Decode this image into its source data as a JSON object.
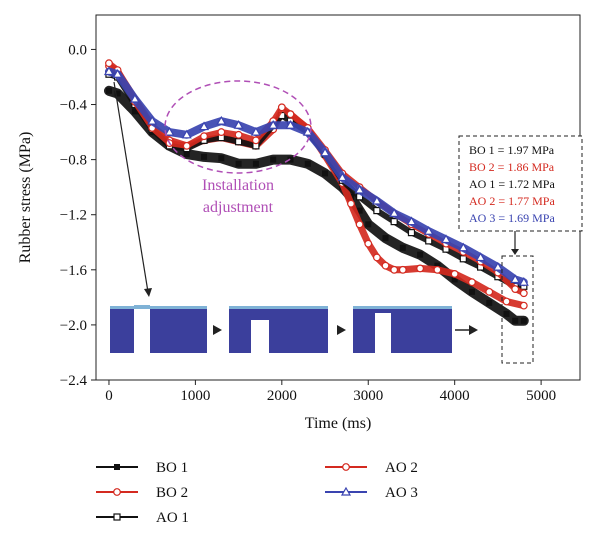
{
  "chart_data": {
    "type": "line",
    "xlabel": "Time (ms)",
    "ylabel": "Rubber stress (MPa)",
    "xlim": [
      -150,
      5450
    ],
    "ylim": [
      -2.4,
      0.25
    ],
    "x_ticks": [
      0,
      1000,
      2000,
      3000,
      4000,
      5000
    ],
    "y_ticks": [
      0.0,
      -0.4,
      -0.8,
      -1.2,
      -1.6,
      -2.0,
      -2.4
    ],
    "x_tick_labels": [
      "0",
      "1000",
      "2000",
      "3000",
      "4000",
      "5000"
    ],
    "y_tick_labels": [
      "0.0",
      "−0.4",
      "−0.8",
      "−1.2",
      "−1.6",
      "−2.0",
      "−2.4"
    ],
    "grid": false,
    "legend_position": "below plot",
    "annotations": {
      "installation": [
        "Installation",
        "adjustment"
      ],
      "installation_color": "#b04fb6",
      "final_values": [
        {
          "text": "BO 1 = 1.97 MPa",
          "color": "#111111"
        },
        {
          "text": "BO 2 = 1.86 MPa",
          "color": "#d42a20"
        },
        {
          "text": "AO 1 = 1.72 MPa",
          "color": "#111111"
        },
        {
          "text": "AO 2 = 1.77 MPa",
          "color": "#d42a20"
        },
        {
          "text": "AO 3 = 1.69 MPa",
          "color": "#3a44b0"
        }
      ]
    },
    "series": [
      {
        "name": "BO 1",
        "color": "#111111",
        "marker": "filled-square",
        "x": [
          0,
          100,
          300,
          500,
          700,
          900,
          1100,
          1300,
          1500,
          1700,
          1900,
          2100,
          2300,
          2500,
          2700,
          2800,
          2900,
          3000,
          3200,
          3400,
          3600,
          3800,
          4000,
          4200,
          4400,
          4600,
          4700,
          4800
        ],
        "y": [
          -0.3,
          -0.32,
          -0.45,
          -0.6,
          -0.7,
          -0.76,
          -0.78,
          -0.79,
          -0.83,
          -0.83,
          -0.8,
          -0.8,
          -0.83,
          -0.9,
          -1.0,
          -1.07,
          -1.17,
          -1.27,
          -1.37,
          -1.44,
          -1.49,
          -1.57,
          -1.67,
          -1.76,
          -1.84,
          -1.92,
          -1.97,
          -1.97
        ]
      },
      {
        "name": "BO 2",
        "color": "#d42a20",
        "marker": "open-circle",
        "x": [
          0,
          100,
          300,
          500,
          700,
          900,
          1100,
          1300,
          1500,
          1700,
          1900,
          2000,
          2100,
          2300,
          2500,
          2700,
          2800,
          2900,
          3000,
          3100,
          3200,
          3300,
          3400,
          3600,
          3800,
          4000,
          4200,
          4400,
          4600,
          4800
        ],
        "y": [
          -0.12,
          -0.16,
          -0.36,
          -0.56,
          -0.66,
          -0.7,
          -0.66,
          -0.64,
          -0.67,
          -0.7,
          -0.58,
          -0.45,
          -0.47,
          -0.58,
          -0.77,
          -0.97,
          -1.12,
          -1.27,
          -1.41,
          -1.51,
          -1.57,
          -1.6,
          -1.6,
          -1.59,
          -1.6,
          -1.63,
          -1.69,
          -1.76,
          -1.83,
          -1.86
        ]
      },
      {
        "name": "AO 1",
        "color": "#111111",
        "marker": "open-square",
        "x": [
          0,
          100,
          300,
          500,
          700,
          900,
          1100,
          1300,
          1500,
          1700,
          1900,
          2000,
          2100,
          2300,
          2500,
          2700,
          2900,
          3100,
          3300,
          3500,
          3700,
          3900,
          4100,
          4300,
          4500,
          4700,
          4800
        ],
        "y": [
          -0.18,
          -0.2,
          -0.4,
          -0.58,
          -0.7,
          -0.72,
          -0.66,
          -0.64,
          -0.67,
          -0.7,
          -0.55,
          -0.48,
          -0.52,
          -0.6,
          -0.76,
          -0.95,
          -1.07,
          -1.17,
          -1.25,
          -1.33,
          -1.39,
          -1.45,
          -1.52,
          -1.58,
          -1.65,
          -1.72,
          -1.72
        ]
      },
      {
        "name": "AO 2",
        "color": "#d42a20",
        "marker": "open-circle",
        "x": [
          0,
          100,
          300,
          500,
          700,
          900,
          1100,
          1300,
          1500,
          1700,
          1900,
          2000,
          2100,
          2300,
          2500,
          2700,
          2900,
          3100,
          3300,
          3500,
          3700,
          3900,
          4100,
          4300,
          4500,
          4700,
          4800
        ],
        "y": [
          -0.1,
          -0.15,
          -0.38,
          -0.57,
          -0.68,
          -0.7,
          -0.63,
          -0.6,
          -0.62,
          -0.66,
          -0.52,
          -0.42,
          -0.47,
          -0.57,
          -0.73,
          -0.9,
          -1.0,
          -1.1,
          -1.19,
          -1.27,
          -1.34,
          -1.41,
          -1.47,
          -1.54,
          -1.62,
          -1.74,
          -1.77
        ]
      },
      {
        "name": "AO 3",
        "color": "#3a44b0",
        "marker": "open-triangle",
        "x": [
          0,
          100,
          300,
          500,
          700,
          900,
          1100,
          1300,
          1500,
          1700,
          1900,
          2100,
          2300,
          2500,
          2700,
          2900,
          3100,
          3300,
          3500,
          3700,
          3900,
          4100,
          4300,
          4500,
          4700,
          4800
        ],
        "y": [
          -0.16,
          -0.18,
          -0.36,
          -0.52,
          -0.6,
          -0.62,
          -0.56,
          -0.52,
          -0.55,
          -0.6,
          -0.55,
          -0.55,
          -0.6,
          -0.75,
          -0.93,
          -1.02,
          -1.1,
          -1.19,
          -1.25,
          -1.32,
          -1.38,
          -1.44,
          -1.51,
          -1.58,
          -1.67,
          -1.69
        ]
      }
    ]
  },
  "colors": {
    "inset_fill": "#3b3f9c",
    "inset_top": "#7fb2d6"
  }
}
